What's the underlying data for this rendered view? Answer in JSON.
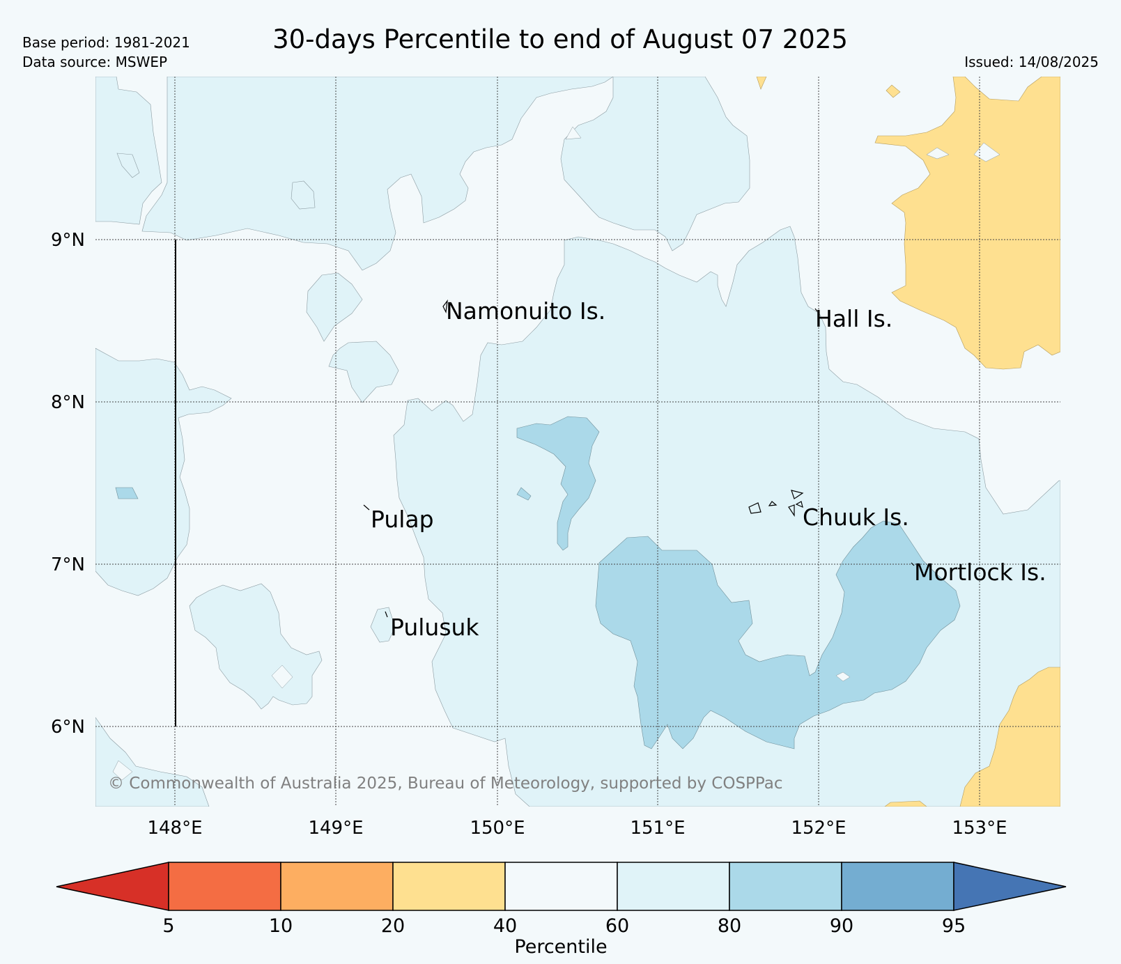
{
  "title": "30-days Percentile to end of August 07 2025",
  "base_period": "Base period: 1981-2021",
  "data_source": "Data source: MSWEP",
  "issued": "Issued: 14/08/2025",
  "copyright": "© Commonwealth of Australia 2025, Bureau of Meteorology, supported by COSPPac",
  "map": {
    "lon_ticks": [
      "148°E",
      "149°E",
      "150°E",
      "151°E",
      "152°E",
      "153°E"
    ],
    "lat_ticks": [
      "9°N",
      "8°N",
      "7°N",
      "6°N"
    ],
    "extent": {
      "lon_min": 147.5,
      "lon_max": 153.5,
      "lat_min": 5.5,
      "lat_max": 10.0
    },
    "places": [
      {
        "name": "Namonuito Is.",
        "lon": 149.67,
        "lat": 8.56
      },
      {
        "name": "Hall Is.",
        "lon": 151.98,
        "lat": 8.52
      },
      {
        "name": "Pulap",
        "lon": 149.2,
        "lat": 7.29
      },
      {
        "name": "Chuuk Is.",
        "lon": 151.85,
        "lat": 7.32
      },
      {
        "name": "Mortlock Is.",
        "lon": 152.6,
        "lat": 6.98
      },
      {
        "name": "Pulusuk",
        "lon": 149.3,
        "lat": 6.63
      }
    ],
    "colors": {
      "p40_60": "#f3f9fb",
      "p60_80": "#e0f3f8",
      "p80_90": "#abd9e9",
      "p20_40": "#fee090"
    }
  },
  "colorbar": {
    "label": "Percentile",
    "ticks": [
      "5",
      "10",
      "20",
      "40",
      "60",
      "80",
      "90",
      "95"
    ],
    "colors": [
      "#d73027",
      "#f46d43",
      "#fdae61",
      "#fee090",
      "#f3f9fb",
      "#e0f3f8",
      "#abd9e9",
      "#74add1",
      "#4575b4"
    ]
  }
}
